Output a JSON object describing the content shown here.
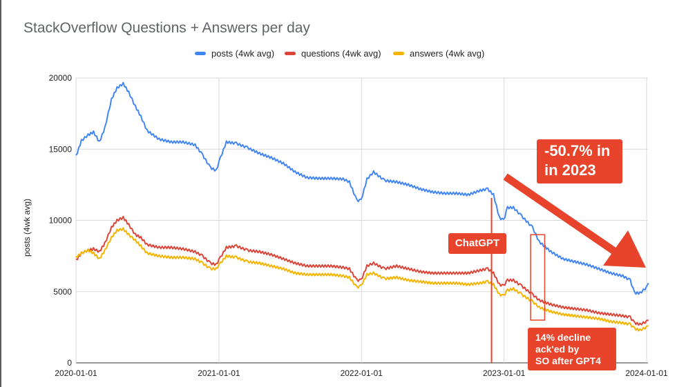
{
  "chart_data": {
    "type": "line",
    "title": "StackOverflow Questions + Answers per day",
    "ylabel": "posts (4wk avg)",
    "xlabel": "",
    "x_ticks": [
      "2020-01-01",
      "2021-01-01",
      "2022-01-01",
      "2023-01-01",
      "2024-01-01"
    ],
    "y_ticks": [
      "0",
      "5000",
      "10000",
      "15000",
      "20000"
    ],
    "ylim": [
      0,
      20000
    ],
    "xlim": [
      "2020-01-01",
      "2024-01-12"
    ],
    "grid": true,
    "legend_position": "top",
    "series": [
      {
        "name": "posts (4wk avg)",
        "color": "#4285f4",
        "points": [
          [
            "2020-01-01",
            14500
          ],
          [
            "2020-01-15",
            15600
          ],
          [
            "2020-02-01",
            16000
          ],
          [
            "2020-02-15",
            16200
          ],
          [
            "2020-03-01",
            15500
          ],
          [
            "2020-03-15",
            16500
          ],
          [
            "2020-04-01",
            18500
          ],
          [
            "2020-04-15",
            19300
          ],
          [
            "2020-05-01",
            19600
          ],
          [
            "2020-05-15",
            19000
          ],
          [
            "2020-06-01",
            18000
          ],
          [
            "2020-06-15",
            17300
          ],
          [
            "2020-07-01",
            16300
          ],
          [
            "2020-08-01",
            15700
          ],
          [
            "2020-09-01",
            15500
          ],
          [
            "2020-10-01",
            15500
          ],
          [
            "2020-11-01",
            15300
          ],
          [
            "2020-11-20",
            14600
          ],
          [
            "2020-12-10",
            13700
          ],
          [
            "2020-12-25",
            13500
          ],
          [
            "2021-01-05",
            14400
          ],
          [
            "2021-01-20",
            15500
          ],
          [
            "2021-02-15",
            15400
          ],
          [
            "2021-03-15",
            15100
          ],
          [
            "2021-04-15",
            14700
          ],
          [
            "2021-05-15",
            14400
          ],
          [
            "2021-06-15",
            14000
          ],
          [
            "2021-07-15",
            13400
          ],
          [
            "2021-08-15",
            13000
          ],
          [
            "2021-09-15",
            12950
          ],
          [
            "2021-10-15",
            12950
          ],
          [
            "2021-11-15",
            12900
          ],
          [
            "2021-12-01",
            12700
          ],
          [
            "2021-12-20",
            11400
          ],
          [
            "2021-12-31",
            11400
          ],
          [
            "2022-01-15",
            12900
          ],
          [
            "2022-02-01",
            13400
          ],
          [
            "2022-03-01",
            12800
          ],
          [
            "2022-04-01",
            12700
          ],
          [
            "2022-05-01",
            12500
          ],
          [
            "2022-06-01",
            12200
          ],
          [
            "2022-07-01",
            12000
          ],
          [
            "2022-08-01",
            11900
          ],
          [
            "2022-09-01",
            11900
          ],
          [
            "2022-10-01",
            11800
          ],
          [
            "2022-11-01",
            12100
          ],
          [
            "2022-11-20",
            12200
          ],
          [
            "2022-12-05",
            11800
          ],
          [
            "2022-12-20",
            10200
          ],
          [
            "2022-12-31",
            10000
          ],
          [
            "2023-01-10",
            10900
          ],
          [
            "2023-01-25",
            10900
          ],
          [
            "2023-02-15",
            10300
          ],
          [
            "2023-03-15",
            9500
          ],
          [
            "2023-04-01",
            8500
          ],
          [
            "2023-05-01",
            7800
          ],
          [
            "2023-06-01",
            7300
          ],
          [
            "2023-07-01",
            7100
          ],
          [
            "2023-08-01",
            6900
          ],
          [
            "2023-09-01",
            6600
          ],
          [
            "2023-10-01",
            6300
          ],
          [
            "2023-11-01",
            6100
          ],
          [
            "2023-11-20",
            5800
          ],
          [
            "2023-12-01",
            4900
          ],
          [
            "2023-12-15",
            4900
          ],
          [
            "2024-01-01",
            5300
          ],
          [
            "2024-01-06",
            5600
          ]
        ]
      },
      {
        "name": "questions (4wk avg)",
        "color": "#db4437",
        "points": [
          [
            "2020-01-01",
            7200
          ],
          [
            "2020-01-15",
            7700
          ],
          [
            "2020-02-01",
            7900
          ],
          [
            "2020-02-15",
            8000
          ],
          [
            "2020-03-01",
            7800
          ],
          [
            "2020-03-15",
            8400
          ],
          [
            "2020-04-01",
            9500
          ],
          [
            "2020-04-15",
            10000
          ],
          [
            "2020-05-01",
            10200
          ],
          [
            "2020-05-15",
            9700
          ],
          [
            "2020-06-01",
            9000
          ],
          [
            "2020-06-15",
            8800
          ],
          [
            "2020-07-01",
            8300
          ],
          [
            "2020-08-01",
            8100
          ],
          [
            "2020-09-01",
            8100
          ],
          [
            "2020-10-01",
            8000
          ],
          [
            "2020-11-01",
            7800
          ],
          [
            "2020-11-20",
            7500
          ],
          [
            "2020-12-10",
            7000
          ],
          [
            "2020-12-25",
            6900
          ],
          [
            "2021-01-05",
            7400
          ],
          [
            "2021-01-20",
            8100
          ],
          [
            "2021-02-15",
            8200
          ],
          [
            "2021-03-15",
            7900
          ],
          [
            "2021-04-15",
            7800
          ],
          [
            "2021-05-15",
            7600
          ],
          [
            "2021-06-15",
            7300
          ],
          [
            "2021-07-15",
            7000
          ],
          [
            "2021-08-15",
            6800
          ],
          [
            "2021-09-15",
            6800
          ],
          [
            "2021-10-15",
            6800
          ],
          [
            "2021-11-15",
            6700
          ],
          [
            "2021-12-01",
            6600
          ],
          [
            "2021-12-20",
            5800
          ],
          [
            "2021-12-31",
            5800
          ],
          [
            "2022-01-15",
            6800
          ],
          [
            "2022-02-01",
            7000
          ],
          [
            "2022-03-01",
            6600
          ],
          [
            "2022-04-01",
            6800
          ],
          [
            "2022-05-01",
            6600
          ],
          [
            "2022-06-01",
            6400
          ],
          [
            "2022-07-01",
            6300
          ],
          [
            "2022-08-01",
            6300
          ],
          [
            "2022-09-01",
            6300
          ],
          [
            "2022-10-01",
            6300
          ],
          [
            "2022-11-01",
            6500
          ],
          [
            "2022-11-20",
            6600
          ],
          [
            "2022-12-05",
            6300
          ],
          [
            "2022-12-20",
            5500
          ],
          [
            "2022-12-31",
            5400
          ],
          [
            "2023-01-10",
            5800
          ],
          [
            "2023-01-25",
            5800
          ],
          [
            "2023-02-15",
            5400
          ],
          [
            "2023-03-15",
            4800
          ],
          [
            "2023-04-01",
            4400
          ],
          [
            "2023-05-01",
            4100
          ],
          [
            "2023-06-01",
            3900
          ],
          [
            "2023-07-01",
            3800
          ],
          [
            "2023-08-01",
            3700
          ],
          [
            "2023-09-01",
            3500
          ],
          [
            "2023-10-01",
            3400
          ],
          [
            "2023-11-01",
            3300
          ],
          [
            "2023-11-20",
            3200
          ],
          [
            "2023-12-01",
            2800
          ],
          [
            "2023-12-15",
            2700
          ],
          [
            "2024-01-01",
            2900
          ],
          [
            "2024-01-06",
            3000
          ]
        ]
      },
      {
        "name": "answers (4wk avg)",
        "color": "#f4b400",
        "points": [
          [
            "2020-01-01",
            7400
          ],
          [
            "2020-01-15",
            7700
          ],
          [
            "2020-02-01",
            7900
          ],
          [
            "2020-02-15",
            7700
          ],
          [
            "2020-03-01",
            7300
          ],
          [
            "2020-03-15",
            7900
          ],
          [
            "2020-04-01",
            8800
          ],
          [
            "2020-04-15",
            9300
          ],
          [
            "2020-05-01",
            9400
          ],
          [
            "2020-05-15",
            9000
          ],
          [
            "2020-06-01",
            8600
          ],
          [
            "2020-06-15",
            8200
          ],
          [
            "2020-07-01",
            7700
          ],
          [
            "2020-08-01",
            7500
          ],
          [
            "2020-09-01",
            7400
          ],
          [
            "2020-10-01",
            7400
          ],
          [
            "2020-11-01",
            7300
          ],
          [
            "2020-11-20",
            7000
          ],
          [
            "2020-12-10",
            6600
          ],
          [
            "2020-12-25",
            6600
          ],
          [
            "2021-01-05",
            7000
          ],
          [
            "2021-01-20",
            7500
          ],
          [
            "2021-02-15",
            7400
          ],
          [
            "2021-03-15",
            7100
          ],
          [
            "2021-04-15",
            7000
          ],
          [
            "2021-05-15",
            6800
          ],
          [
            "2021-06-15",
            6600
          ],
          [
            "2021-07-15",
            6300
          ],
          [
            "2021-08-15",
            6200
          ],
          [
            "2021-09-15",
            6200
          ],
          [
            "2021-10-15",
            6200
          ],
          [
            "2021-11-15",
            6100
          ],
          [
            "2021-12-01",
            6000
          ],
          [
            "2021-12-20",
            5300
          ],
          [
            "2021-12-31",
            5400
          ],
          [
            "2022-01-15",
            6200
          ],
          [
            "2022-02-01",
            6300
          ],
          [
            "2022-03-01",
            5900
          ],
          [
            "2022-04-01",
            6000
          ],
          [
            "2022-05-01",
            5800
          ],
          [
            "2022-06-01",
            5700
          ],
          [
            "2022-07-01",
            5600
          ],
          [
            "2022-08-01",
            5600
          ],
          [
            "2022-09-01",
            5600
          ],
          [
            "2022-10-01",
            5500
          ],
          [
            "2022-11-01",
            5600
          ],
          [
            "2022-11-20",
            5700
          ],
          [
            "2022-12-05",
            5500
          ],
          [
            "2022-12-20",
            4800
          ],
          [
            "2022-12-31",
            4700
          ],
          [
            "2023-01-10",
            5100
          ],
          [
            "2023-01-25",
            5200
          ],
          [
            "2023-02-15",
            4800
          ],
          [
            "2023-03-15",
            4300
          ],
          [
            "2023-04-01",
            3900
          ],
          [
            "2023-05-01",
            3600
          ],
          [
            "2023-06-01",
            3400
          ],
          [
            "2023-07-01",
            3300
          ],
          [
            "2023-08-01",
            3200
          ],
          [
            "2023-09-01",
            3100
          ],
          [
            "2023-10-01",
            2900
          ],
          [
            "2023-11-01",
            2800
          ],
          [
            "2023-11-20",
            2700
          ],
          [
            "2023-12-01",
            2400
          ],
          [
            "2023-12-15",
            2300
          ],
          [
            "2024-01-01",
            2500
          ],
          [
            "2024-01-06",
            2600
          ]
        ]
      }
    ],
    "annotations": [
      {
        "text": "-50.7% in\nin 2023",
        "color": "#e8432b"
      },
      {
        "text": "ChatGPT",
        "color": "#e8432b",
        "line_x": "2022-11-30"
      },
      {
        "text": "14% decline\nack'ed by\nSO after GPT4",
        "color": "#e8432b",
        "box_x": [
          "2023-03-10",
          "2023-04-15"
        ],
        "box_y": [
          3000,
          9000
        ]
      }
    ],
    "arrow": {
      "from": [
        "2023-01-01",
        13300
      ],
      "to": [
        "2024-01-01",
        6800
      ],
      "color": "#e8432b"
    }
  }
}
